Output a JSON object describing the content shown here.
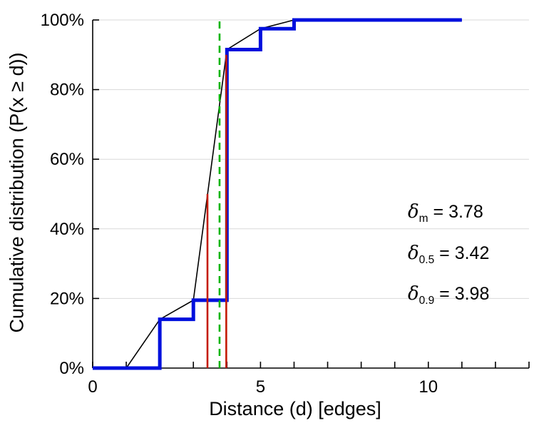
{
  "chart_data": {
    "type": "line",
    "title": "",
    "xlabel": "Distance (d) [edges]",
    "ylabel": "Cumulative distribution (P(x  ≥ d))",
    "xlim": [
      0,
      13
    ],
    "ylim": [
      0,
      100
    ],
    "x_major_ticks": [
      0,
      5,
      10
    ],
    "x_minor_tick_step": 1,
    "y_ticks": [
      0,
      20,
      40,
      60,
      80,
      100
    ],
    "y_tick_labels": [
      "0%",
      "20%",
      "40%",
      "60%",
      "80%",
      "100%"
    ],
    "grid": "horizontal-light-gray",
    "legend_position": "none",
    "series": [
      {
        "name": "empirical-cdf-step",
        "type": "step",
        "color": "#0010dd",
        "stroke_width": 5,
        "points": [
          [
            0,
            0
          ],
          [
            2,
            0
          ],
          [
            2,
            14
          ],
          [
            3,
            14
          ],
          [
            3,
            19.5
          ],
          [
            4,
            19.5
          ],
          [
            4,
            91.5
          ],
          [
            5,
            91.5
          ],
          [
            5,
            97.5
          ],
          [
            6,
            97.5
          ],
          [
            6,
            100
          ],
          [
            11,
            100
          ]
        ]
      },
      {
        "name": "linear-interpolation",
        "type": "line",
        "color": "#000000",
        "stroke_width": 1.6,
        "points": [
          [
            1,
            0
          ],
          [
            2,
            14
          ],
          [
            3,
            19.5
          ],
          [
            4,
            91.5
          ],
          [
            5,
            97.5
          ],
          [
            6,
            100
          ],
          [
            11,
            100
          ]
        ]
      }
    ],
    "vlines": [
      {
        "name": "delta-0.5-marker",
        "x": 3.42,
        "y_from": 0,
        "y_to": 50,
        "color": "#c41a00",
        "style": "solid",
        "width": 2.6
      },
      {
        "name": "delta-0.9-marker",
        "x": 3.98,
        "y_from": 0,
        "y_to": 90,
        "color": "#c41a00",
        "style": "solid",
        "width": 2.6
      },
      {
        "name": "delta-mean-marker",
        "x": 3.78,
        "y_from": 0,
        "y_to": 100,
        "color": "#00b400",
        "style": "dashed",
        "width": 2.6
      }
    ],
    "annotations": [
      {
        "symbol": "δ",
        "subscript": "m",
        "value": " = 3.78"
      },
      {
        "symbol": "δ",
        "subscript": "0.5",
        "value": " = 3.42"
      },
      {
        "symbol": "δ",
        "subscript": "0.9",
        "value": " = 3.98"
      }
    ]
  }
}
